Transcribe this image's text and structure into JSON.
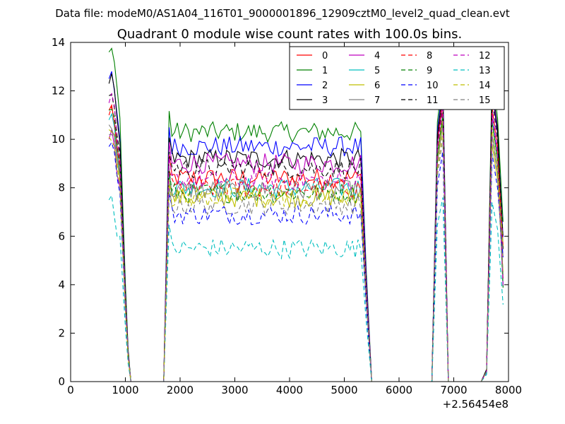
{
  "figure": {
    "suptitle": "Data file: modeM0/AS1A04_116T01_9000001896_12909cztM0_level2_quad_clean.evt"
  },
  "chart_data": {
    "type": "line",
    "title": "Quadrant 0 module wise count rates with 100.0s bins.",
    "xlabel": "",
    "ylabel": "",
    "x_offset_label": "+2.56454e8",
    "xlim": [
      0,
      8000
    ],
    "ylim": [
      0,
      14
    ],
    "xticks": [
      0,
      1000,
      2000,
      3000,
      4000,
      5000,
      6000,
      7000,
      8000
    ],
    "yticks": [
      0,
      2,
      4,
      6,
      8,
      10,
      12,
      14
    ],
    "grid": false,
    "legend": {
      "placement": "top-right",
      "columns": 4
    },
    "series": [
      {
        "name": "0",
        "color": "#ff0000",
        "dash": "solid",
        "plateau": 8.4,
        "noise": 0.3,
        "start": 11.2,
        "b2": 11.7,
        "b3": 12.0
      },
      {
        "name": "1",
        "color": "#008000",
        "dash": "solid",
        "plateau": 10.3,
        "noise": 0.3,
        "start": 13.6,
        "b2": 12.6,
        "b3": 12.8
      },
      {
        "name": "2",
        "color": "#0000ff",
        "dash": "solid",
        "plateau": 9.7,
        "noise": 0.3,
        "start": 12.5,
        "b2": 12.2,
        "b3": 12.1
      },
      {
        "name": "3",
        "color": "#000000",
        "dash": "solid",
        "plateau": 9.2,
        "noise": 0.3,
        "start": 12.3,
        "b2": 12.0,
        "b3": 12.3
      },
      {
        "name": "4",
        "color": "#bf00bf",
        "dash": "solid",
        "plateau": 9.0,
        "noise": 0.3,
        "start": 10.0,
        "b2": 11.5,
        "b3": 11.2
      },
      {
        "name": "5",
        "color": "#00bfbf",
        "dash": "solid",
        "plateau": 8.0,
        "noise": 0.3,
        "start": 10.8,
        "b2": 11.0,
        "b3": 10.8
      },
      {
        "name": "6",
        "color": "#bfbf00",
        "dash": "solid",
        "plateau": 7.6,
        "noise": 0.3,
        "start": 10.4,
        "b2": 10.8,
        "b3": 9.8
      },
      {
        "name": "7",
        "color": "#808080",
        "dash": "solid",
        "plateau": 7.9,
        "noise": 0.3,
        "start": 10.6,
        "b2": 10.6,
        "b3": 10.2
      },
      {
        "name": "8",
        "color": "#ff0000",
        "dash": "dashed",
        "plateau": 8.0,
        "noise": 0.3,
        "start": 11.0,
        "b2": 11.2,
        "b3": 11.3
      },
      {
        "name": "9",
        "color": "#008000",
        "dash": "dashed",
        "plateau": 7.8,
        "noise": 0.3,
        "start": 11.2,
        "b2": 11.0,
        "b3": 10.7
      },
      {
        "name": "10",
        "color": "#0000ff",
        "dash": "dashed",
        "plateau": 6.9,
        "noise": 0.3,
        "start": 9.7,
        "b2": 9.5,
        "b3": 9.4
      },
      {
        "name": "11",
        "color": "#000000",
        "dash": "dashed",
        "plateau": 8.8,
        "noise": 0.3,
        "start": 11.8,
        "b2": 11.6,
        "b3": 11.7
      },
      {
        "name": "12",
        "color": "#bf00bf",
        "dash": "dashed",
        "plateau": 8.3,
        "noise": 0.3,
        "start": 11.5,
        "b2": 11.4,
        "b3": 11.0
      },
      {
        "name": "13",
        "color": "#00bfbf",
        "dash": "dashed",
        "plateau": 5.5,
        "noise": 0.3,
        "start": 7.5,
        "b2": 7.6,
        "b3": 7.4
      },
      {
        "name": "14",
        "color": "#bfbf00",
        "dash": "dashed",
        "plateau": 7.6,
        "noise": 0.3,
        "start": 10.1,
        "b2": 10.3,
        "b3": 10.5
      },
      {
        "name": "15",
        "color": "#808080",
        "dash": "dashed",
        "plateau": 7.3,
        "noise": 0.3,
        "start": 10.2,
        "b2": 10.0,
        "b3": 10.1
      }
    ]
  }
}
